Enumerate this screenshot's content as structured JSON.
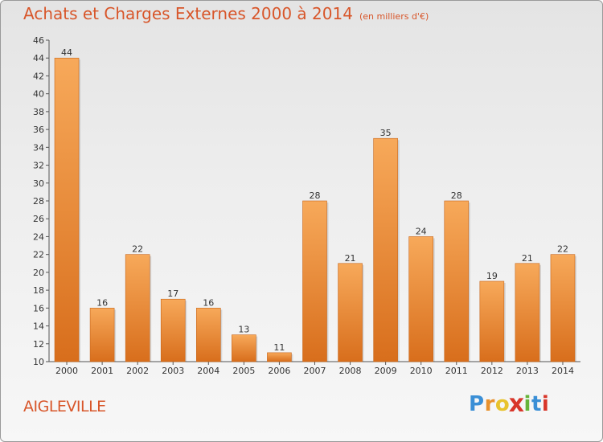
{
  "title": "Achats et Charges Externes 2000 à 2014",
  "title_unit": "(en milliers d'€)",
  "commune": "AIGLEVILLE",
  "logo": {
    "letters": [
      "P",
      "r",
      "o",
      "x",
      "i",
      "t",
      "i"
    ],
    "colors": [
      "#3a8fd6",
      "#e8912d",
      "#e8c32d",
      "#d8362a",
      "#66b43a",
      "#3a8fd6",
      "#d8362a"
    ]
  },
  "colors": {
    "accent": "#d8562a",
    "bar_light": "#f7a95a",
    "bar_dark": "#d86e1c"
  },
  "chart_data": {
    "type": "bar",
    "categories": [
      "2000",
      "2001",
      "2002",
      "2003",
      "2004",
      "2005",
      "2006",
      "2007",
      "2008",
      "2009",
      "2010",
      "2011",
      "2012",
      "2013",
      "2014"
    ],
    "values": [
      44,
      16,
      22,
      17,
      16,
      13,
      11,
      28,
      21,
      35,
      24,
      28,
      19,
      21,
      22
    ],
    "ylim": [
      10,
      46
    ],
    "yticks": [
      10,
      12,
      14,
      16,
      18,
      20,
      22,
      24,
      26,
      28,
      30,
      32,
      34,
      36,
      38,
      40,
      42,
      44,
      46
    ],
    "grid": false,
    "legend": "none"
  }
}
